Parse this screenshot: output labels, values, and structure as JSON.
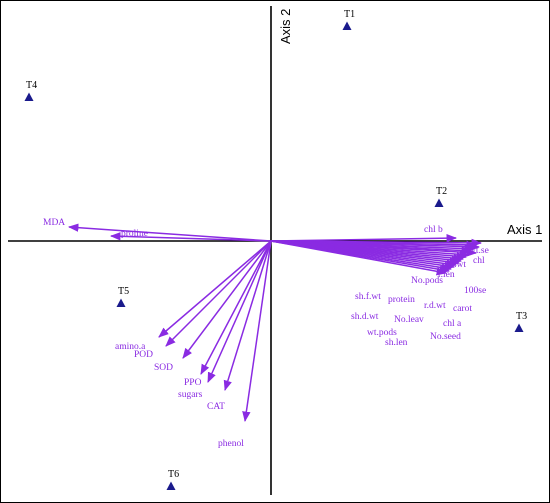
{
  "chart_data": {
    "type": "biplot",
    "title": "",
    "xlabel": "Axis 1",
    "ylabel": "Axis 2",
    "xlim": [
      -2.7,
      2.8
    ],
    "ylim": [
      -2.6,
      2.4
    ],
    "grid": false,
    "legend": "none",
    "colors": {
      "observations": "#1a1a8c",
      "variables": "#8a2be2",
      "axes": "#000000"
    },
    "observations": [
      {
        "name": "T1",
        "x": 0.76,
        "y": 2.15
      },
      {
        "name": "T2",
        "x": 1.68,
        "y": 0.38
      },
      {
        "name": "T3",
        "x": 2.48,
        "y": -0.87
      },
      {
        "name": "T4",
        "x": -2.42,
        "y": 1.44
      },
      {
        "name": "T5",
        "x": -1.5,
        "y": -0.62
      },
      {
        "name": "T6",
        "x": -1.0,
        "y": -2.45
      }
    ],
    "variables": [
      {
        "name": "MDA",
        "x": -2.02,
        "y": 0.14
      },
      {
        "name": "proline",
        "x": -1.6,
        "y": 0.05
      },
      {
        "name": "chl b",
        "x": 1.85,
        "y": 0.03
      },
      {
        "name": "wt.se",
        "x": 2.1,
        "y": -0.02
      },
      {
        "name": "r.f.wt",
        "x": 2.05,
        "y": -0.04
      },
      {
        "name": "chl",
        "x": 2.08,
        "y": -0.06
      },
      {
        "name": "r.len",
        "x": 2.03,
        "y": -0.08
      },
      {
        "name": "No.pods",
        "x": 2.0,
        "y": -0.1
      },
      {
        "name": "100se",
        "x": 2.05,
        "y": -0.12
      },
      {
        "name": "sh.f.wt",
        "x": 1.98,
        "y": -0.14
      },
      {
        "name": "protein",
        "x": 1.95,
        "y": -0.16
      },
      {
        "name": "r.d.wt",
        "x": 1.92,
        "y": -0.18
      },
      {
        "name": "carot",
        "x": 1.9,
        "y": -0.2
      },
      {
        "name": "sh.d.wt",
        "x": 1.88,
        "y": -0.22
      },
      {
        "name": "No.leav",
        "x": 1.85,
        "y": -0.24
      },
      {
        "name": "chl a",
        "x": 1.83,
        "y": -0.26
      },
      {
        "name": "wt.pods",
        "x": 1.8,
        "y": -0.28
      },
      {
        "name": "No.seed",
        "x": 1.78,
        "y": -0.3
      },
      {
        "name": "sh.len",
        "x": 1.75,
        "y": -0.32
      },
      {
        "name": "amino.a",
        "x": -1.12,
        "y": -0.96
      },
      {
        "name": "POD",
        "x": -1.05,
        "y": -1.05
      },
      {
        "name": "SOD",
        "x": -0.88,
        "y": -1.17
      },
      {
        "name": "PPO",
        "x": -0.7,
        "y": -1.33
      },
      {
        "name": "sugars",
        "x": -0.63,
        "y": -1.41
      },
      {
        "name": "CAT",
        "x": -0.46,
        "y": -1.49
      },
      {
        "name": "phenol",
        "x": -0.26,
        "y": -1.8
      }
    ]
  }
}
